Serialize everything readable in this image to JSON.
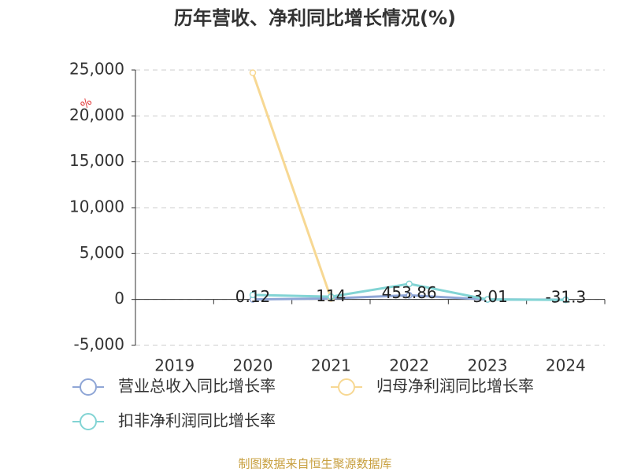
{
  "chart_data": {
    "type": "line",
    "title": "历年营收、净利同比增长情况(%)",
    "y_unit": "%",
    "categories": [
      "2019",
      "2020",
      "2021",
      "2022",
      "2023",
      "2024"
    ],
    "series": [
      {
        "name": "营业总收入同比增长率",
        "color": "#8fa6d6",
        "values": [
          null,
          0.12,
          114,
          453.86,
          -3.01,
          -31.3
        ]
      },
      {
        "name": "归母净利润同比增长率",
        "color": "#f7d893",
        "values": [
          null,
          24700,
          100,
          null,
          null,
          null
        ]
      },
      {
        "name": "扣非净利润同比增长率",
        "color": "#82d4d4",
        "values": [
          null,
          500,
          300,
          1700,
          0,
          -50
        ]
      }
    ],
    "ylim": [
      -5000,
      25000
    ],
    "yticks": [
      {
        "value": -5000,
        "label": "-5,000"
      },
      0,
      {
        "value": 5000,
        "label": "5,000"
      },
      {
        "value": 10000,
        "label": "10,000"
      },
      {
        "value": 15000,
        "label": "15,000"
      },
      {
        "value": 20000,
        "label": "20,000"
      },
      {
        "value": 25000,
        "label": "25,000"
      }
    ],
    "grid": true,
    "source": "制图数据来自恒生聚源数据库"
  }
}
